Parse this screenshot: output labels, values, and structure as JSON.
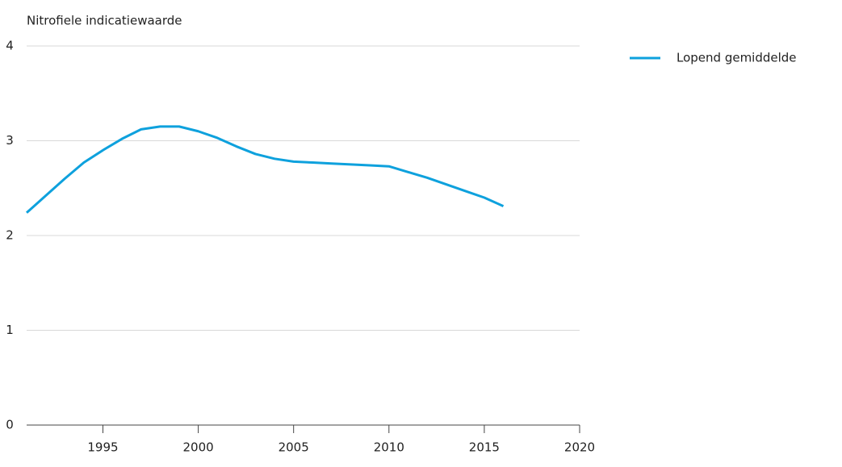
{
  "chart_data": {
    "type": "line",
    "y_label": "Nitrofiele indicatiewaarde",
    "x": [
      1991,
      1992,
      1993,
      1994,
      1995,
      1996,
      1997,
      1998,
      1999,
      2000,
      2001,
      2002,
      2003,
      2004,
      2005,
      2006,
      2007,
      2008,
      2009,
      2010,
      2011,
      2012,
      2013,
      2014,
      2015,
      2016
    ],
    "series": [
      {
        "name": "Lopend gemiddelde",
        "color": "#0ea1dd",
        "values": [
          2.24,
          2.42,
          2.6,
          2.77,
          2.9,
          3.02,
          3.12,
          3.15,
          3.15,
          3.1,
          3.03,
          2.94,
          2.86,
          2.81,
          2.78,
          2.77,
          2.76,
          2.75,
          2.74,
          2.73,
          2.67,
          2.61,
          2.54,
          2.47,
          2.4,
          2.31
        ]
      }
    ],
    "xlim": [
      1991,
      2020
    ],
    "xticks": [
      1995,
      2000,
      2005,
      2010,
      2015,
      2020
    ],
    "ylim": [
      0,
      4
    ],
    "yticks": [
      0,
      1,
      2,
      3,
      4
    ],
    "grid": true,
    "legend": "right"
  }
}
